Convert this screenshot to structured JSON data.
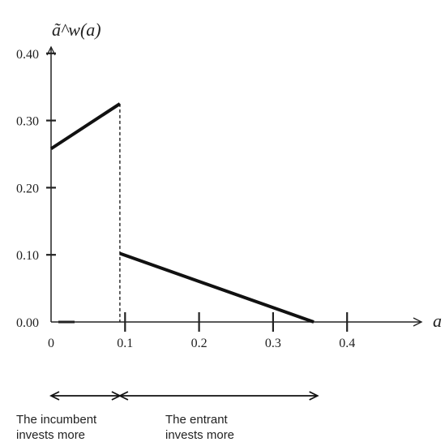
{
  "chart_data": {
    "type": "line",
    "ylabel": "ã^w(a)",
    "xlabel": "a",
    "xlim": [
      0,
      0.48
    ],
    "ylim": [
      0,
      0.4
    ],
    "x_ticks": [
      {
        "value": 0,
        "label": "0"
      },
      {
        "value": 0.1,
        "label": "0.1"
      },
      {
        "value": 0.2,
        "label": "0.2"
      },
      {
        "value": 0.3,
        "label": "0.3"
      },
      {
        "value": 0.4,
        "label": "0.4"
      }
    ],
    "y_ticks": [
      {
        "value": 0,
        "label": "0.00"
      },
      {
        "value": 0.1,
        "label": "0.10"
      },
      {
        "value": 0.2,
        "label": "0.20"
      },
      {
        "value": 0.3,
        "label": "0.30"
      },
      {
        "value": 0.4,
        "label": "0.40"
      }
    ],
    "segments": [
      {
        "x": [
          0,
          0.093
        ],
        "y": [
          0.258,
          0.325
        ]
      },
      {
        "x": [
          0.093,
          0.355
        ],
        "y": [
          0.102,
          0
        ]
      }
    ],
    "discontinuity_x": 0.093,
    "regions": [
      {
        "x": [
          0,
          0.093
        ],
        "label_line1": "The incumbent",
        "label_line2": "invests more"
      },
      {
        "x": [
          0.093,
          0.36
        ],
        "label_line1": "The entrant",
        "label_line2": "invests more"
      }
    ]
  }
}
